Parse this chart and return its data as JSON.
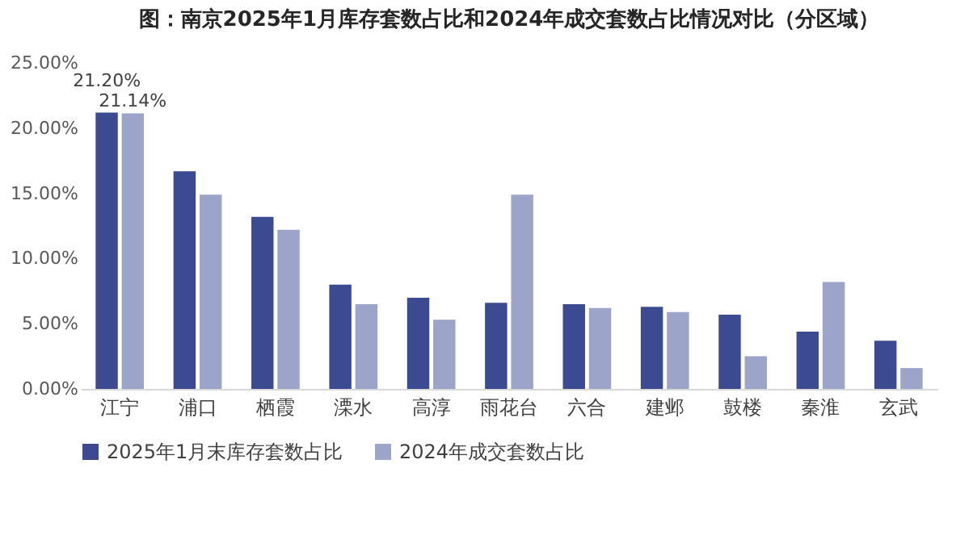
{
  "chart_data": {
    "type": "bar",
    "title": "图：南京2025年1月库存套数占比和2024年成交套数占比情况对比（分区域）",
    "categories": [
      "江宁",
      "浦口",
      "栖霞",
      "溧水",
      "高淳",
      "雨花台",
      "六合",
      "建邺",
      "鼓楼",
      "秦淮",
      "玄武"
    ],
    "series": [
      {
        "name": "2025年1月末库存套数占比",
        "color": "#3c4b91",
        "values": [
          21.2,
          16.7,
          13.2,
          8.0,
          7.0,
          6.6,
          6.5,
          6.3,
          5.7,
          4.4,
          3.7
        ],
        "value_labels": [
          "21.20%",
          null,
          null,
          null,
          null,
          null,
          null,
          null,
          null,
          null,
          null
        ]
      },
      {
        "name": "2024年成交套数占比",
        "color": "#9ca5c9",
        "values": [
          21.14,
          14.9,
          12.2,
          6.5,
          5.3,
          14.9,
          6.2,
          5.9,
          2.5,
          8.2,
          1.6
        ],
        "value_labels": [
          "21.14%",
          null,
          null,
          null,
          null,
          null,
          null,
          null,
          null,
          null,
          null
        ]
      }
    ],
    "ylim": [
      0,
      25
    ],
    "yticks": [
      {
        "value": 0,
        "label": "0.00%"
      },
      {
        "value": 5,
        "label": "5.00%"
      },
      {
        "value": 10,
        "label": "10.00%"
      },
      {
        "value": 15,
        "label": "15.00%"
      },
      {
        "value": 20,
        "label": "20.00%"
      },
      {
        "value": 25,
        "label": "25.00%"
      }
    ],
    "grid": false,
    "legend": "bottom"
  }
}
